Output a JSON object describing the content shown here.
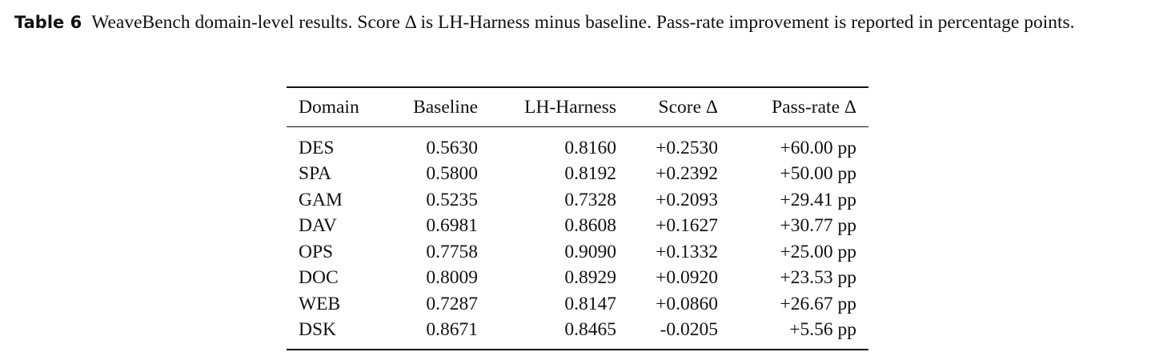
{
  "caption": {
    "label": "Table 6",
    "text": "WeaveBench domain-level results. Score Δ is LH-Harness minus baseline. Pass-rate improvement is reported in percentage points."
  },
  "table": {
    "header": [
      "Domain",
      "Baseline",
      "LH-Harness",
      "Score Δ",
      "Pass-rate Δ"
    ],
    "rows": [
      [
        "DES",
        "0.5630",
        "0.8160",
        "+0.2530",
        "+60.00 pp"
      ],
      [
        "SPA",
        "0.5800",
        "0.8192",
        "+0.2392",
        "+50.00 pp"
      ],
      [
        "GAM",
        "0.5235",
        "0.7328",
        "+0.2093",
        "+29.41 pp"
      ],
      [
        "DAV",
        "0.6981",
        "0.8608",
        "+0.1627",
        "+30.77 pp"
      ],
      [
        "OPS",
        "0.7758",
        "0.9090",
        "+0.1332",
        "+25.00 pp"
      ],
      [
        "DOC",
        "0.8009",
        "0.8929",
        "+0.0920",
        "+23.53 pp"
      ],
      [
        "WEB",
        "0.7287",
        "0.8147",
        "+0.0860",
        "+26.67 pp"
      ],
      [
        "DSK",
        "0.8671",
        "0.8465",
        "-0.0205",
        "+5.56 pp"
      ]
    ]
  }
}
